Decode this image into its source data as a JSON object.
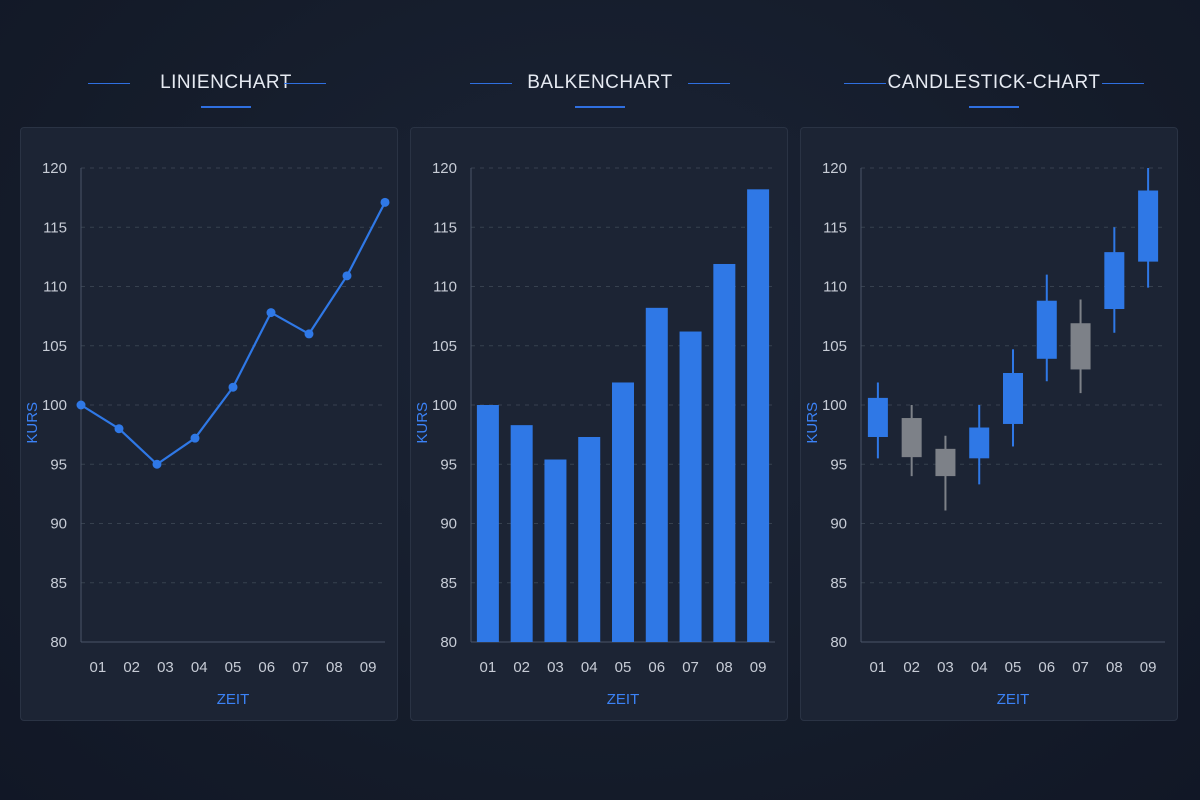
{
  "colors": {
    "accent": "#2f78e6",
    "grey": "#7d8188",
    "grid": "#37414f",
    "axis": "#4a5568"
  },
  "chart_data": [
    {
      "type": "line",
      "title": "LINIENCHART",
      "xlabel": "ZEIT",
      "ylabel": "KURS",
      "categories": [
        "01",
        "02",
        "03",
        "04",
        "05",
        "06",
        "07",
        "08",
        "09"
      ],
      "values": [
        100,
        98,
        95,
        97.2,
        101.5,
        107.8,
        106,
        110.9,
        117.1
      ],
      "ylim": [
        80,
        120
      ],
      "yticks": [
        80,
        85,
        90,
        95,
        100,
        105,
        110,
        115,
        120
      ],
      "grid": true
    },
    {
      "type": "bar",
      "title": "BALKENCHART",
      "xlabel": "ZEIT",
      "ylabel": "KURS",
      "categories": [
        "01",
        "02",
        "03",
        "04",
        "05",
        "06",
        "07",
        "08",
        "09"
      ],
      "values": [
        100,
        98.3,
        95.4,
        97.3,
        101.9,
        108.2,
        106.2,
        111.9,
        118.2
      ],
      "ylim": [
        80,
        120
      ],
      "yticks": [
        80,
        85,
        90,
        95,
        100,
        105,
        110,
        115,
        120
      ],
      "grid": true
    },
    {
      "type": "candlestick",
      "title": "CANDLESTICK-CHART",
      "xlabel": "ZEIT",
      "ylabel": "KURS",
      "categories": [
        "01",
        "02",
        "03",
        "04",
        "05",
        "06",
        "07",
        "08",
        "09"
      ],
      "candles": [
        {
          "open": 97.3,
          "close": 100.6,
          "high": 101.9,
          "low": 95.5,
          "up": true
        },
        {
          "open": 98.9,
          "close": 95.6,
          "high": 100,
          "low": 94,
          "up": false
        },
        {
          "open": 96.3,
          "close": 94,
          "high": 97.4,
          "low": 91.1,
          "up": false
        },
        {
          "open": 95.5,
          "close": 98.1,
          "high": 100,
          "low": 93.3,
          "up": true
        },
        {
          "open": 98.4,
          "close": 102.7,
          "high": 104.7,
          "low": 96.5,
          "up": true
        },
        {
          "open": 103.9,
          "close": 108.8,
          "high": 111,
          "low": 102,
          "up": true
        },
        {
          "open": 106.9,
          "close": 103,
          "high": 108.9,
          "low": 101,
          "up": false
        },
        {
          "open": 108.1,
          "close": 112.9,
          "high": 115,
          "low": 106.1,
          "up": true
        },
        {
          "open": 112.1,
          "close": 118.1,
          "high": 120,
          "low": 109.9,
          "up": true
        }
      ],
      "ylim": [
        80,
        120
      ],
      "yticks": [
        80,
        85,
        90,
        95,
        100,
        105,
        110,
        115,
        120
      ],
      "grid": true
    }
  ]
}
